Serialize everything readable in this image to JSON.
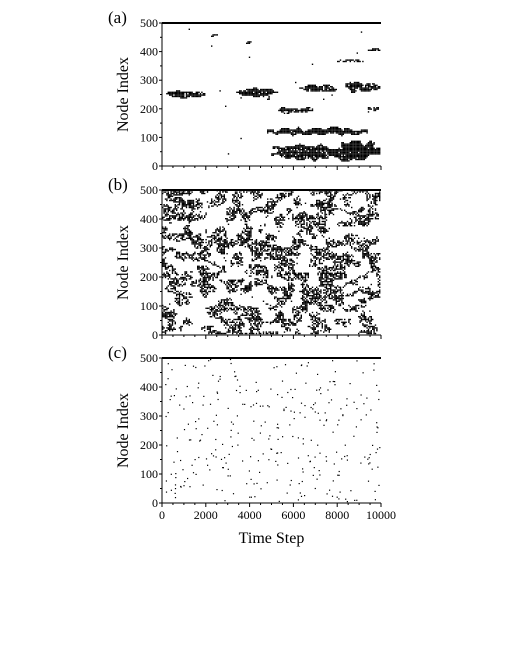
{
  "chart_data": [
    {
      "panel_label": "(a)",
      "type": "heatmap",
      "pattern": "clustered-large",
      "ylabel": "Node Index",
      "xlabel": "",
      "xlim": [
        0,
        10000
      ],
      "ylim": [
        0,
        500
      ],
      "y_ticks": [
        "0",
        "100",
        "200",
        "300",
        "400",
        "500"
      ],
      "x_ticks": [],
      "x_tick_values": [
        0,
        2000,
        4000,
        6000,
        8000,
        10000
      ],
      "y_tick_values": [
        0,
        100,
        200,
        300,
        400,
        500
      ],
      "fill_color": "#000000",
      "clusters": [
        {
          "t0": 200,
          "t1": 2000,
          "n_center": 250,
          "half_width": 10,
          "density": 0.9
        },
        {
          "t0": 3400,
          "t1": 5300,
          "n_center": 255,
          "half_width": 12,
          "density": 0.9
        },
        {
          "t0": 4800,
          "t1": 5000,
          "n_center": 235,
          "half_width": 6,
          "density": 0.7
        },
        {
          "t0": 5300,
          "t1": 6900,
          "n_center": 195,
          "half_width": 9,
          "density": 0.85
        },
        {
          "t0": 6300,
          "t1": 8000,
          "n_center": 270,
          "half_width": 9,
          "density": 0.85
        },
        {
          "t0": 8400,
          "t1": 10000,
          "n_center": 275,
          "half_width": 13,
          "density": 0.9
        },
        {
          "t0": 4800,
          "t1": 9400,
          "n_center": 120,
          "half_width": 10,
          "density": 0.95
        },
        {
          "t0": 5000,
          "t1": 10000,
          "n_center": 45,
          "half_width": 20,
          "density": 0.9
        },
        {
          "t0": 8200,
          "t1": 10000,
          "n_center": 60,
          "half_width": 20,
          "density": 0.95
        },
        {
          "t0": 2200,
          "t1": 2600,
          "n_center": 455,
          "half_width": 3,
          "density": 0.9
        },
        {
          "t0": 3800,
          "t1": 4200,
          "n_center": 430,
          "half_width": 3,
          "density": 0.6
        },
        {
          "t0": 8000,
          "t1": 9200,
          "n_center": 365,
          "half_width": 5,
          "density": 0.7
        },
        {
          "t0": 9400,
          "t1": 10000,
          "n_center": 405,
          "half_width": 4,
          "density": 0.8
        },
        {
          "t0": 9400,
          "t1": 10000,
          "n_center": 200,
          "half_width": 6,
          "density": 0.6
        }
      ]
    },
    {
      "panel_label": "(b)",
      "type": "heatmap",
      "pattern": "clustered-medium",
      "ylabel": "Node Index",
      "xlabel": "",
      "xlim": [
        0,
        10000
      ],
      "ylim": [
        0,
        500
      ],
      "y_ticks": [
        "0",
        "100",
        "200",
        "300",
        "400",
        "500"
      ],
      "x_ticks": [],
      "x_tick_values": [
        0,
        2000,
        4000,
        6000,
        8000,
        10000
      ],
      "y_tick_values": [
        0,
        100,
        200,
        300,
        400,
        500
      ],
      "fill_color": "#000000",
      "active_fraction": 0.42
    },
    {
      "panel_label": "(c)",
      "type": "heatmap",
      "pattern": "random-sparse",
      "ylabel": "Node Index",
      "xlabel": "Time Step",
      "xlim": [
        0,
        10000
      ],
      "ylim": [
        0,
        500
      ],
      "y_ticks": [
        "0",
        "100",
        "200",
        "300",
        "400",
        "500"
      ],
      "x_ticks": [
        "0",
        "2000",
        "4000",
        "6000",
        "8000",
        "10000"
      ],
      "x_tick_values": [
        0,
        2000,
        4000,
        6000,
        8000,
        10000
      ],
      "y_tick_values": [
        0,
        100,
        200,
        300,
        400,
        500
      ],
      "fill_color": "#000000",
      "active_fraction": 0.04
    }
  ]
}
